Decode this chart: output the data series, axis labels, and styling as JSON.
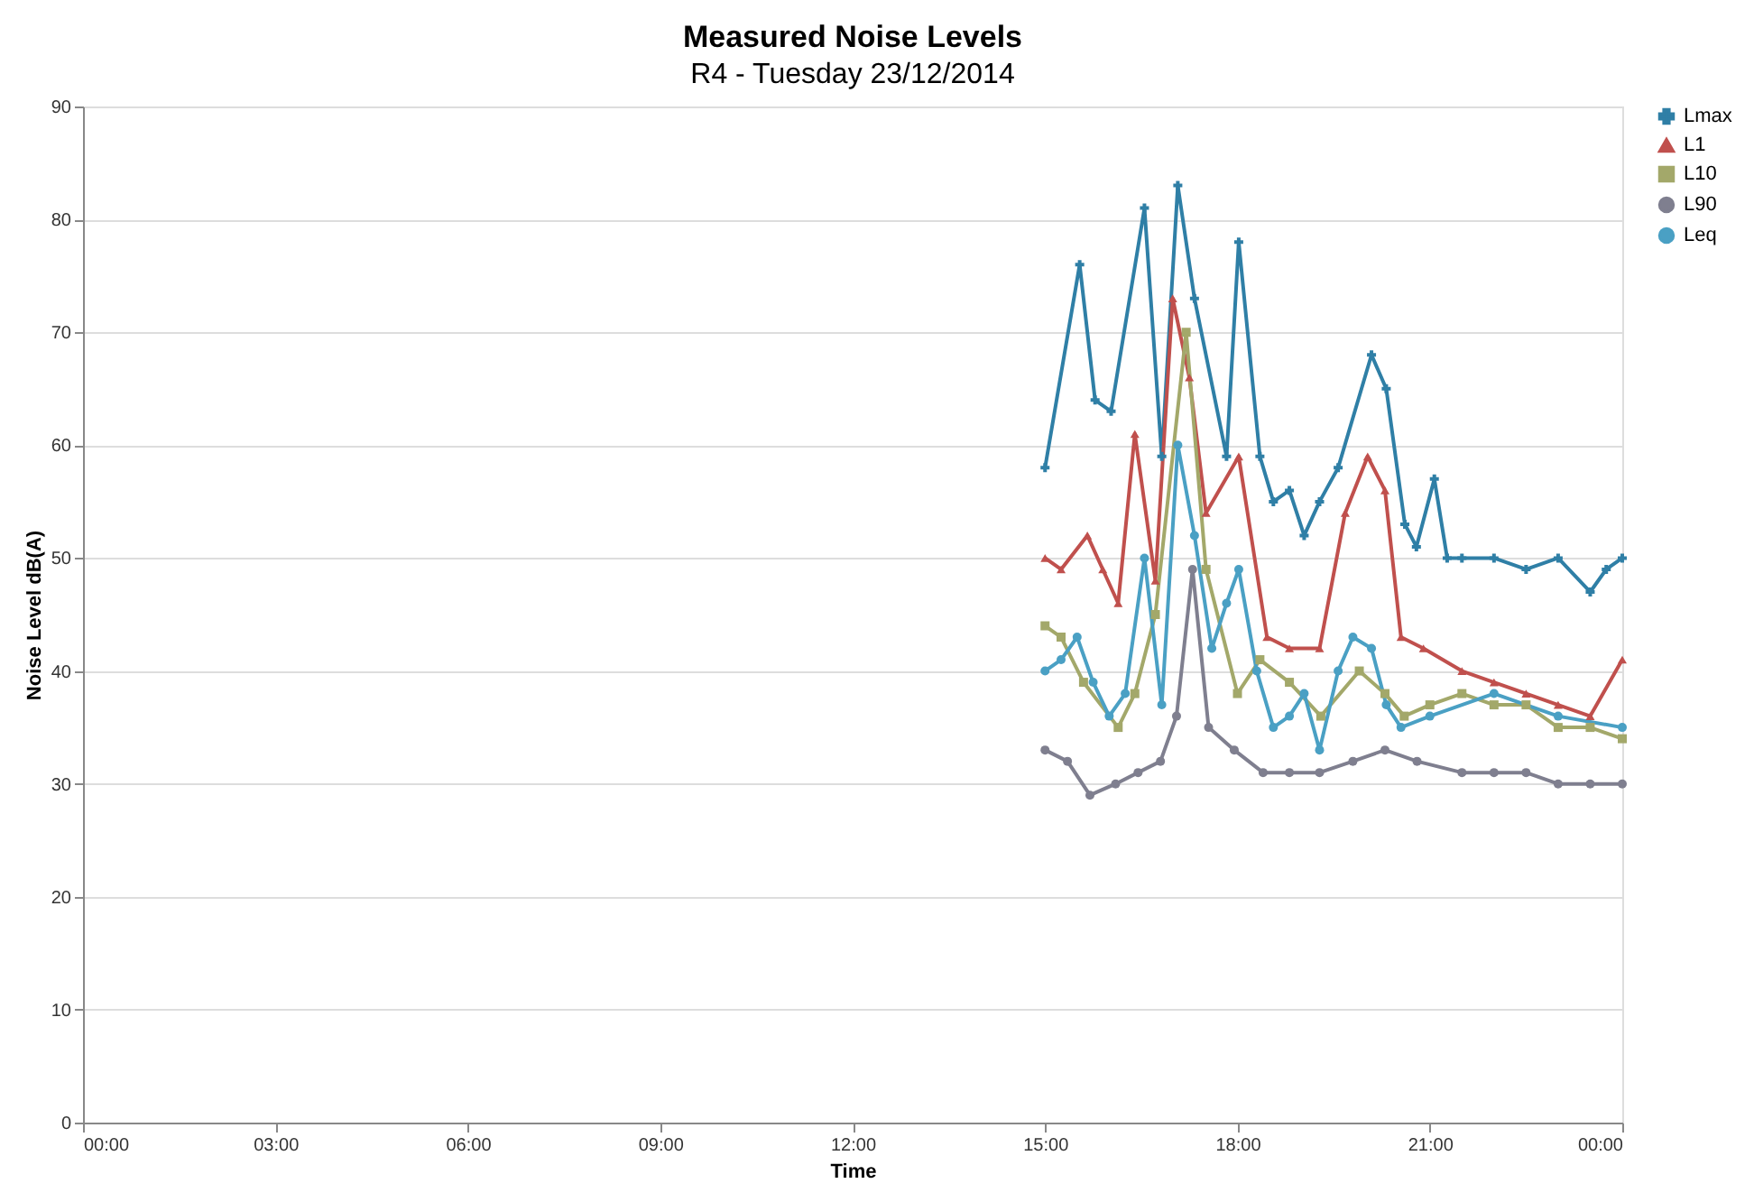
{
  "chart_data": {
    "type": "line",
    "title": "Measured Noise Levels",
    "subtitle": "R4 - Tuesday 23/12/2014",
    "xlabel": "Time",
    "ylabel": "Noise Level dB(A)",
    "xlim": [
      0,
      24
    ],
    "xticks": [
      {
        "value": 0,
        "label": "00:00"
      },
      {
        "value": 3,
        "label": "03:00"
      },
      {
        "value": 6,
        "label": "06:00"
      },
      {
        "value": 9,
        "label": "09:00"
      },
      {
        "value": 12,
        "label": "12:00"
      },
      {
        "value": 15,
        "label": "15:00"
      },
      {
        "value": 18,
        "label": "18:00"
      },
      {
        "value": 21,
        "label": "21:00"
      },
      {
        "value": 24,
        "label": "00:00"
      }
    ],
    "ylim": [
      0,
      90
    ],
    "yticks": [
      0,
      10,
      20,
      30,
      40,
      50,
      60,
      70,
      80,
      90
    ],
    "grid": "y",
    "legend": "right",
    "line_style": "solid",
    "series": [
      {
        "name": "Lmax",
        "color": "#2f7fa6",
        "marker": "cross",
        "x": [
          15.0,
          15.54,
          15.78,
          16.03,
          16.55,
          16.82,
          17.07,
          17.33,
          17.83,
          18.02,
          18.35,
          18.56,
          18.81,
          19.04,
          19.28,
          19.57,
          20.09,
          20.32,
          20.61,
          20.79,
          21.07,
          21.27,
          21.5,
          22.0,
          22.5,
          23.0,
          23.5,
          23.75,
          24.0
        ],
        "values": [
          58,
          76,
          64,
          63,
          81,
          59,
          83,
          73,
          59,
          78,
          59,
          55,
          56,
          52,
          55,
          58,
          68,
          65,
          53,
          51,
          57,
          50,
          50,
          50,
          49,
          50,
          47,
          49,
          50
        ]
      },
      {
        "name": "L1",
        "color": "#c0504d",
        "marker": "triangle",
        "x": [
          15.0,
          15.25,
          15.66,
          15.9,
          16.14,
          16.4,
          16.72,
          16.99,
          17.25,
          17.51,
          18.02,
          18.46,
          18.81,
          19.28,
          19.68,
          20.03,
          20.3,
          20.55,
          20.9,
          21.5,
          22.0,
          22.5,
          23.0,
          23.5,
          24.0
        ],
        "values": [
          50,
          49,
          52,
          49,
          46,
          61,
          48,
          73,
          66,
          54,
          59,
          43,
          42,
          42,
          54,
          59,
          56,
          43,
          42,
          40,
          39,
          38,
          37,
          36,
          41
        ]
      },
      {
        "name": "L10",
        "color": "#a3a86a",
        "marker": "square",
        "x": [
          15.0,
          15.25,
          15.6,
          16.14,
          16.4,
          16.72,
          17.2,
          17.51,
          18.0,
          18.35,
          18.81,
          19.3,
          19.9,
          20.3,
          20.6,
          21.0,
          21.5,
          22.0,
          22.5,
          23.0,
          23.5,
          24.0
        ],
        "values": [
          44,
          43,
          39,
          35,
          38,
          45,
          70,
          49,
          38,
          41,
          39,
          36,
          40,
          38,
          36,
          37,
          38,
          37,
          37,
          35,
          35,
          34
        ]
      },
      {
        "name": "L90",
        "color": "#7f7f8f",
        "marker": "circle",
        "x": [
          15.0,
          15.35,
          15.7,
          16.1,
          16.45,
          16.8,
          17.05,
          17.3,
          17.55,
          17.95,
          18.4,
          18.81,
          19.28,
          19.8,
          20.3,
          20.8,
          21.5,
          22.0,
          22.5,
          23.0,
          23.5,
          24.0
        ],
        "values": [
          33,
          32,
          29,
          30,
          31,
          32,
          36,
          49,
          35,
          33,
          31,
          31,
          31,
          32,
          33,
          32,
          31,
          31,
          31,
          30,
          30,
          30
        ]
      },
      {
        "name": "Leq",
        "color": "#4aa0c4",
        "marker": "circle",
        "x": [
          15.0,
          15.25,
          15.5,
          15.75,
          16.0,
          16.25,
          16.55,
          16.82,
          17.07,
          17.33,
          17.6,
          17.83,
          18.02,
          18.3,
          18.56,
          18.81,
          19.04,
          19.28,
          19.57,
          19.8,
          20.09,
          20.32,
          20.55,
          21.0,
          22.0,
          23.0,
          24.0
        ],
        "values": [
          40,
          41,
          43,
          39,
          36,
          38,
          50,
          37,
          60,
          52,
          42,
          46,
          49,
          40,
          35,
          36,
          38,
          33,
          40,
          43,
          42,
          37,
          35,
          36,
          38,
          36,
          35
        ]
      }
    ]
  }
}
